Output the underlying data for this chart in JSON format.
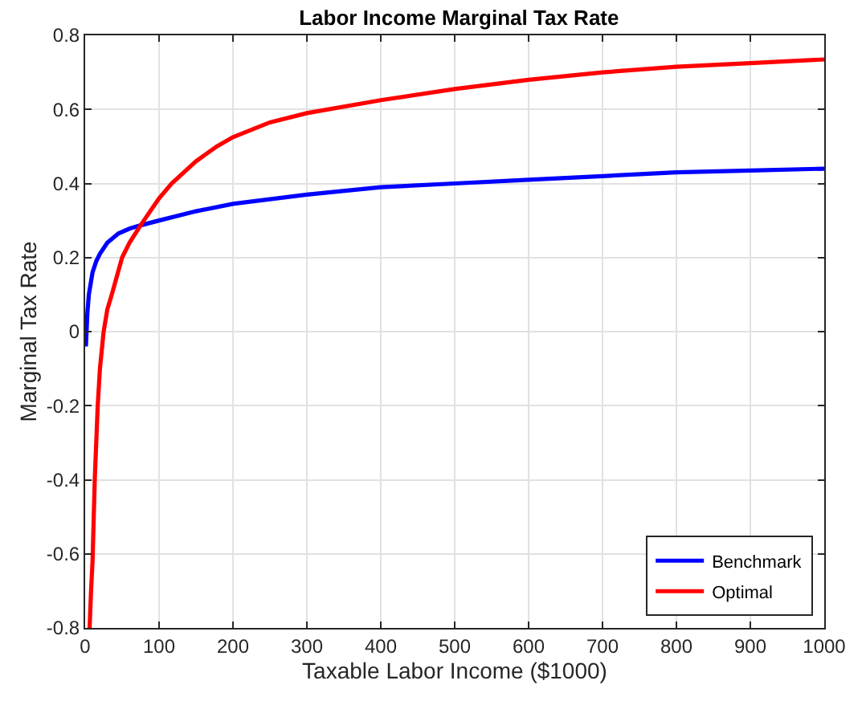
{
  "chart_data": {
    "type": "line",
    "title": "Labor Income Marginal Tax Rate",
    "xlabel": "Taxable Labor Income ($1000)",
    "ylabel": "Marginal Tax Rate",
    "xlim": [
      0,
      1000
    ],
    "xticks": [
      0,
      100,
      200,
      300,
      400,
      500,
      600,
      700,
      800,
      900,
      1000
    ],
    "ylim": [
      -0.8,
      0.8
    ],
    "yticks": [
      -0.8,
      -0.6,
      -0.4,
      -0.2,
      0,
      0.2,
      0.4,
      0.6,
      0.8
    ],
    "grid": true,
    "legend": "bottom right",
    "marker": "none",
    "line_style": "solid",
    "series": [
      {
        "name": "Benchmark",
        "color": "#0000ff",
        "x": [
          1,
          3,
          5,
          10,
          15,
          20,
          30,
          45,
          60,
          75,
          100,
          150,
          200,
          300,
          400,
          500,
          600,
          700,
          800,
          900,
          1000
        ],
        "values": [
          -0.04,
          0.05,
          0.1,
          0.16,
          0.19,
          0.21,
          0.24,
          0.265,
          0.278,
          0.287,
          0.3,
          0.325,
          0.345,
          0.37,
          0.39,
          0.4,
          0.41,
          0.42,
          0.43,
          0.435,
          0.44
        ]
      },
      {
        "name": "Optimal",
        "color": "#ff0000",
        "x": [
          6,
          8,
          10,
          13,
          17,
          20,
          25,
          30,
          36,
          50,
          60,
          75,
          100,
          117,
          150,
          178,
          200,
          250,
          300,
          400,
          500,
          600,
          700,
          800,
          900,
          1000
        ],
        "values": [
          -0.8,
          -0.7,
          -0.62,
          -0.4,
          -0.2,
          -0.1,
          0,
          0.06,
          0.1,
          0.2,
          0.24,
          0.287,
          0.36,
          0.4,
          0.46,
          0.5,
          0.525,
          0.565,
          0.59,
          0.625,
          0.655,
          0.68,
          0.7,
          0.715,
          0.725,
          0.735
        ]
      }
    ]
  }
}
